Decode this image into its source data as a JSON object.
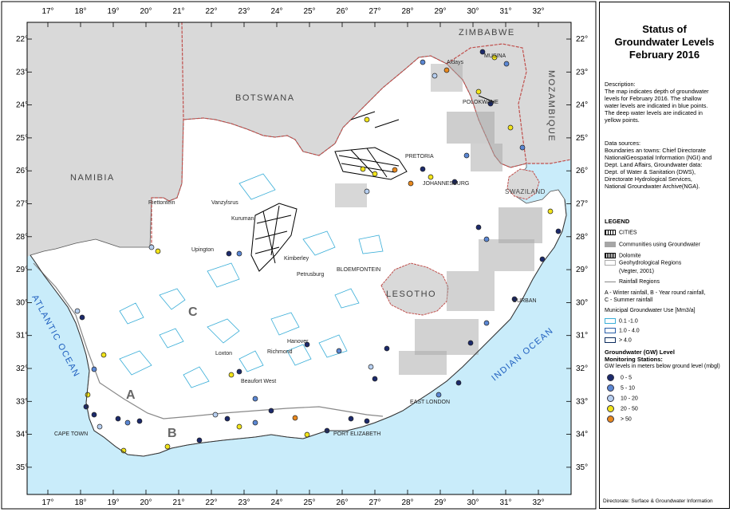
{
  "map": {
    "lon_ticks": [
      "17°",
      "18°",
      "19°",
      "20°",
      "21°",
      "22°",
      "23°",
      "24°",
      "25°",
      "26°",
      "27°",
      "28°",
      "29°",
      "30°",
      "31°",
      "32°"
    ],
    "lat_ticks": [
      "22°",
      "23°",
      "24°",
      "25°",
      "26°",
      "27°",
      "28°",
      "29°",
      "30°",
      "31°",
      "32°",
      "33°",
      "34°",
      "35°"
    ],
    "countries": {
      "zimbabwe": "ZIMBABWE",
      "botswana": "BOTSWANA",
      "namibia": "NAMIBIA",
      "mozambique": "MOZAMBIQUE",
      "swaziland": "SWAZILAND",
      "lesotho": "LESOTHO"
    },
    "oceans": {
      "atlantic": "ATLANTIC OCEAN",
      "indian": "INDIAN OCEAN"
    },
    "cities": {
      "musina": "MUSINA",
      "aldays": "Aldays",
      "polokwane": "POLOKWANE",
      "pretoria": "PRETORIA",
      "johannesburg": "JOHANNESBURG",
      "riettontein": "Riettontein",
      "vanzylsrus": "Vanzylsrus",
      "kuruman": "Kuruman",
      "upington": "Upington",
      "kimberley": "Kimberley",
      "bloemfontein": "BLOEMFONTEIN",
      "petrusburg": "Petrusburg",
      "durban": "DURBAN",
      "hanover": "Hanover",
      "loxton": "Loxton",
      "richmond": "Richmond",
      "beaufort_west": "Beaufort West",
      "east_london": "EAST LONDON",
      "cape_town": "CAPE TOWN",
      "port_elizabeth": "PORT ELIZABETH"
    },
    "regions": {
      "a": "A",
      "b": "B",
      "c": "C"
    },
    "colors": {
      "neighbour": "#d9d9d9",
      "ocean": "#c9ecfa",
      "land": "#ffffff",
      "border": "#c0504d",
      "municipal_outline": "#3aaed8",
      "communities": "#a6a6a6"
    }
  },
  "panel": {
    "title": [
      "Status of",
      "Groundwater Levels",
      "February 2016"
    ],
    "description_lines": [
      "Description:",
      "The map indicates depth of groundwater",
      "levels for February 2016. The shallow",
      "water levels are indicated in blue points.",
      "The deep water levels are indicated in",
      "yellow points."
    ],
    "sources_lines": [
      "Data sources:",
      "Boundaries an towns: Chief Directorate",
      "NationalGeospatial Information (NGI) and",
      "Dept. Land Affairs, Groundwater data:",
      "Dept. of Water & Sanitation (DWS),",
      "Directorate Hydrological Services,",
      "National Groundwater Archive(NGA)."
    ],
    "legend_title": "LEGEND",
    "legend_items": {
      "cities": "CITIES",
      "communities": "Communities using Groundwater",
      "dolomite": "Dolomite",
      "geohydro_1": "Geohydrological Regions",
      "geohydro_2": "(Vegter, 2001)",
      "rainfall": "Rainfall Regions",
      "rainfall_note_1": "A - Winter rainfall, B - Year round rainfall,",
      "rainfall_note_2": "C - Summer rainfall",
      "municipal_title": "Municipal Groundwater Use [Mm3/a]",
      "muni_1": "0.1 -1.0",
      "muni_2": "1.0 - 4.0",
      "muni_3": "> 4.0"
    },
    "gw_title_1": "Groundwater (GW) Level",
    "gw_title_2": "Monitoring Stations:",
    "gw_subtitle": "GW levels in meters below ground level (mbgl)",
    "gw_classes": [
      {
        "label": "0 - 5",
        "color": "#1c2a6b"
      },
      {
        "label": "5 - 10",
        "color": "#5b87d3"
      },
      {
        "label": "10 - 20",
        "color": "#b7cff0"
      },
      {
        "label": "20 - 50",
        "color": "#f2e41a"
      },
      {
        "label": "> 50",
        "color": "#e8891f"
      }
    ],
    "footer": "Directorate: Surface & Groundwater Information"
  }
}
